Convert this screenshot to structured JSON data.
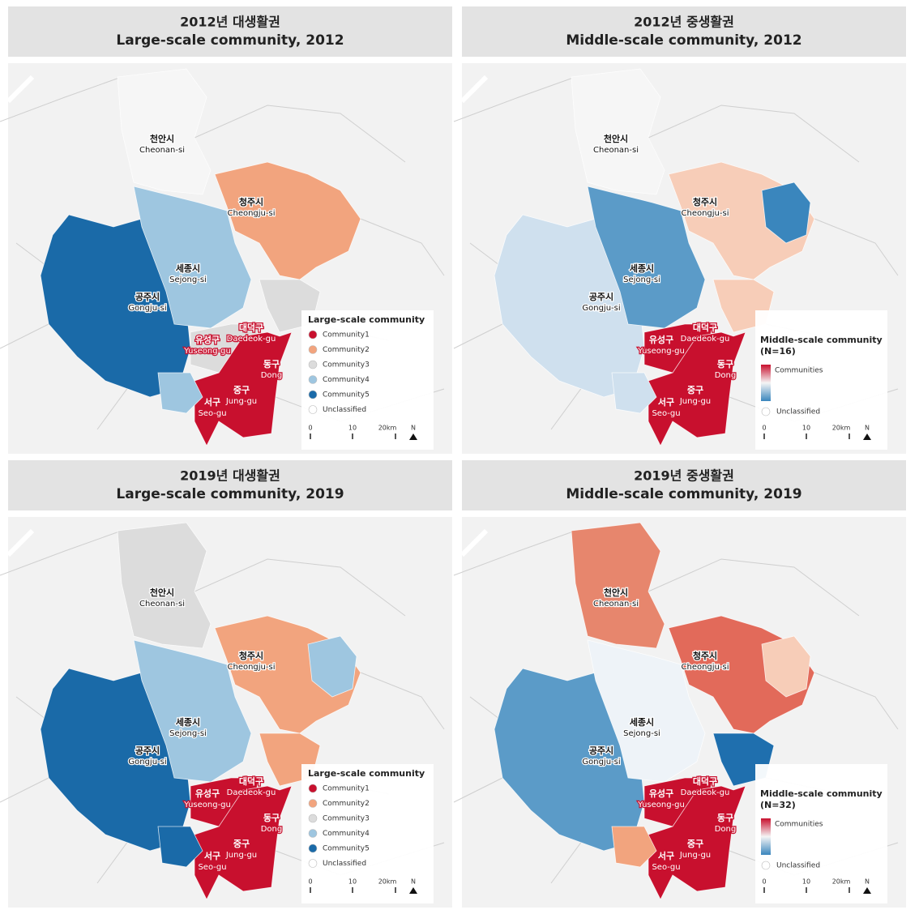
{
  "panels": [
    {
      "title_ko": "2012년 대생활권",
      "title_en": "Large-scale community, 2012",
      "labels": [
        {
          "ko": "천안시",
          "en": "Cheonan-si"
        },
        {
          "ko": "청주시",
          "en": "Cheongju-si"
        },
        {
          "ko": "세종시",
          "en": "Sejong-si"
        },
        {
          "ko": "공주시",
          "en": "Gongju-si"
        },
        {
          "ko": "유성구",
          "en": "Yuseong-gu"
        },
        {
          "ko": "대덕구",
          "en": "Daedeok-gu"
        },
        {
          "ko": "동구",
          "en": "Dong"
        },
        {
          "ko": "중구",
          "en": "Jung-gu"
        },
        {
          "ko": "서구",
          "en": "Seo-gu"
        }
      ],
      "legend": {
        "title": "Large-scale community",
        "items": [
          {
            "name": "Community1",
            "color": "#c8102e"
          },
          {
            "name": "Community2",
            "color": "#f2a47e"
          },
          {
            "name": "Community3",
            "color": "#dcdcdc"
          },
          {
            "name": "Community4",
            "color": "#9ec6e0"
          },
          {
            "name": "Community5",
            "color": "#1a6aa8"
          },
          {
            "name": "Unclassified",
            "color": "#ffffff"
          }
        ]
      },
      "scale": {
        "ticks": [
          "0",
          "10",
          "20km"
        ],
        "north": "N"
      }
    },
    {
      "title_ko": "2012년 중생활권",
      "title_en": "Middle-scale community, 2012",
      "labels": [
        {
          "ko": "천안시",
          "en": "Cheonan-si"
        },
        {
          "ko": "청주시",
          "en": "Cheongju-si"
        },
        {
          "ko": "세종시",
          "en": "Sejong-si"
        },
        {
          "ko": "공주시",
          "en": "Gongju-si"
        },
        {
          "ko": "유성구",
          "en": "Yuseong-gu"
        },
        {
          "ko": "대덕구",
          "en": "Daedeok-gu"
        },
        {
          "ko": "동구",
          "en": "Dong"
        },
        {
          "ko": "중구",
          "en": "Jung-gu"
        },
        {
          "ko": "서구",
          "en": "Seo-gu"
        }
      ],
      "legend": {
        "title": "Middle-scale community",
        "subtitle": "(N=16)",
        "gradient_label": "Communities",
        "unclassified": "Unclassified"
      },
      "scale": {
        "ticks": [
          "0",
          "10",
          "20km"
        ],
        "north": "N"
      }
    },
    {
      "title_ko": "2019년 대생활권",
      "title_en": "Large-scale community, 2019",
      "labels": [
        {
          "ko": "천안시",
          "en": "Cheonan-si"
        },
        {
          "ko": "청주시",
          "en": "Cheongju-si"
        },
        {
          "ko": "세종시",
          "en": "Sejong-si"
        },
        {
          "ko": "공주시",
          "en": "Gongju-si"
        },
        {
          "ko": "유성구",
          "en": "Yuseong-gu"
        },
        {
          "ko": "대덕구",
          "en": "Daedeok-gu"
        },
        {
          "ko": "동구",
          "en": "Dong"
        },
        {
          "ko": "중구",
          "en": "Jung-gu"
        },
        {
          "ko": "서구",
          "en": "Seo-gu"
        }
      ],
      "legend": {
        "title": "Large-scale community",
        "items": [
          {
            "name": "Community1",
            "color": "#c8102e"
          },
          {
            "name": "Community2",
            "color": "#f2a47e"
          },
          {
            "name": "Community3",
            "color": "#dcdcdc"
          },
          {
            "name": "Community4",
            "color": "#9ec6e0"
          },
          {
            "name": "Community5",
            "color": "#1a6aa8"
          },
          {
            "name": "Unclassified",
            "color": "#ffffff"
          }
        ]
      },
      "scale": {
        "ticks": [
          "0",
          "10",
          "20km"
        ],
        "north": "N"
      }
    },
    {
      "title_ko": "2019년 중생활권",
      "title_en": "Middle-scale community, 2019",
      "labels": [
        {
          "ko": "천안시",
          "en": "Cheonan-si"
        },
        {
          "ko": "청주시",
          "en": "Cheongju-si"
        },
        {
          "ko": "세종시",
          "en": "Sejong-si"
        },
        {
          "ko": "공주시",
          "en": "Gongju-si"
        },
        {
          "ko": "유성구",
          "en": "Yuseong-gu"
        },
        {
          "ko": "대덕구",
          "en": "Daedeok-gu"
        },
        {
          "ko": "동구",
          "en": "Dong"
        },
        {
          "ko": "중구",
          "en": "Jung-gu"
        },
        {
          "ko": "서구",
          "en": "Seo-gu"
        }
      ],
      "legend": {
        "title": "Middle-scale community",
        "subtitle": "(N=32)",
        "gradient_label": "Communities",
        "unclassified": "Unclassified"
      },
      "scale": {
        "ticks": [
          "0",
          "10",
          "20km"
        ],
        "north": "N"
      }
    }
  ]
}
